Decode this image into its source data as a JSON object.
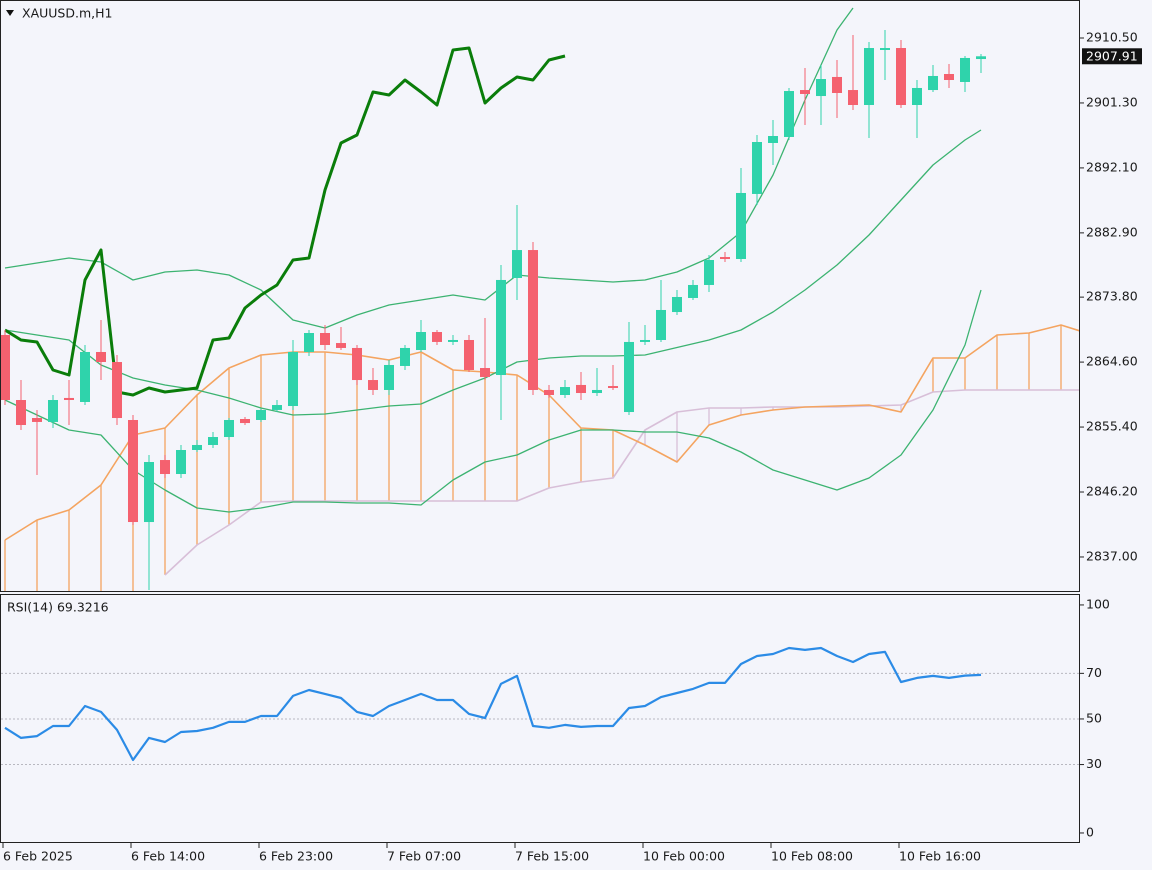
{
  "chart_data": [
    {
      "type": "candlestick",
      "title": "XAUUSD.m,H1",
      "categories": [
        "6 Feb 2025",
        null,
        null,
        null,
        null,
        null,
        null,
        null,
        "6 Feb 14:00",
        null,
        null,
        null,
        null,
        null,
        null,
        null,
        "6 Feb 23:00",
        null,
        null,
        null,
        null,
        null,
        null,
        null,
        "7 Feb 07:00",
        null,
        null,
        null,
        null,
        null,
        null,
        null,
        "7 Feb 15:00",
        null,
        null,
        null,
        null,
        null,
        null,
        null,
        "10 Feb 00:00",
        null,
        null,
        null,
        null,
        null,
        null,
        null,
        "10 Feb 08:00",
        null,
        null,
        null,
        null,
        null,
        null,
        null,
        "10 Feb 16:00",
        null,
        null,
        null,
        null,
        null,
        null,
        null,
        null,
        null,
        null,
        null,
        null
      ],
      "open": [
        2868.44,
        2859.23,
        2856.68,
        2856.12,
        2859.52,
        2858.95,
        2866.03,
        2864.61,
        2856.4,
        2841.95,
        2850.73,
        2848.75,
        2852.15,
        2852.86,
        2853.99,
        2856.54,
        2856.4,
        2857.82,
        2858.38,
        2866.03,
        2868.72,
        2867.3,
        2866.6,
        2862.06,
        2860.65,
        2864.05,
        2866.31,
        2868.86,
        2867.45,
        2867.73,
        2863.76,
        2862.77,
        2876.51,
        2880.47,
        2860.65,
        2859.94,
        2861.36,
        2860.22,
        2861.21,
        2857.53,
        2867.45,
        2867.73,
        2871.69,
        2873.68,
        2875.52,
        2879.48,
        2879.2,
        2888.41,
        2895.63,
        2896.48,
        2903.13,
        2902.28,
        2904.98,
        2903.13,
        2901.01,
        2908.8,
        2909.08,
        2901.01,
        2903.13,
        2905.4,
        2904.27,
        2907.52,
        null,
        null,
        null,
        null,
        null,
        null,
        null
      ],
      "high": [
        2869.15,
        2862.06,
        2857.82,
        2859.94,
        2862.06,
        2867.02,
        2870.56,
        2865.6,
        2857.11,
        2851.44,
        2851.44,
        2852.86,
        2853.57,
        2854.7,
        2856.68,
        2856.82,
        2858.1,
        2859.23,
        2867.73,
        2869.15,
        2869.85,
        2869.57,
        2867.02,
        2863.76,
        2864.9,
        2867.02,
        2870.56,
        2869.15,
        2868.44,
        2868.44,
        2870.84,
        2878.35,
        2886.85,
        2881.61,
        2861.36,
        2862.06,
        2863.2,
        2863.76,
        2864.19,
        2870.28,
        2869.85,
        2876.23,
        2874.81,
        2876.23,
        2879.77,
        2880.19,
        2892.09,
        2896.76,
        2898.89,
        2903.42,
        2906.25,
        2906.67,
        2907.38,
        2910.92,
        2909.93,
        2911.63,
        2910.22,
        2904.55,
        2906.67,
        2906.82,
        2907.95,
        2908.23,
        null,
        null,
        null,
        null,
        null,
        null,
        null
      ],
      "low": [
        2858.52,
        2854.98,
        2848.61,
        2855.27,
        2855.69,
        2858.52,
        2862.06,
        2855.69,
        2841.53,
        2832.32,
        2848.19,
        2848.19,
        2851.87,
        2852.43,
        2853.57,
        2855.69,
        2856.12,
        2857.53,
        2857.82,
        2865.46,
        2866.31,
        2866.31,
        2861.36,
        2859.94,
        2859.94,
        2863.48,
        2866.03,
        2867.02,
        2867.02,
        2863.2,
        2862.06,
        2856.4,
        2873.39,
        2859.94,
        2859.52,
        2859.52,
        2859.23,
        2859.8,
        2860.65,
        2857.11,
        2867.02,
        2867.45,
        2871.27,
        2873.39,
        2874.53,
        2878.78,
        2878.78,
        2886.85,
        2892.51,
        2896.05,
        2898.18,
        2898.18,
        2899.17,
        2900.3,
        2896.34,
        2904.55,
        2900.59,
        2896.34,
        2902.85,
        2903.42,
        2902.85,
        2905.54,
        null,
        null,
        null,
        null,
        null,
        null,
        null
      ],
      "close": [
        2859.23,
        2855.69,
        2856.12,
        2859.23,
        2859.23,
        2866.03,
        2864.61,
        2856.68,
        2841.95,
        2850.45,
        2848.75,
        2852.15,
        2852.86,
        2853.99,
        2856.4,
        2855.97,
        2857.82,
        2858.52,
        2866.03,
        2868.72,
        2867.02,
        2866.6,
        2862.06,
        2860.65,
        2864.19,
        2866.6,
        2868.86,
        2867.45,
        2867.73,
        2863.48,
        2862.49,
        2876.23,
        2880.47,
        2860.65,
        2859.94,
        2861.07,
        2860.22,
        2860.65,
        2860.93,
        2867.45,
        2867.73,
        2871.98,
        2873.82,
        2875.52,
        2879.06,
        2879.2,
        2888.55,
        2895.77,
        2896.62,
        2902.99,
        2902.57,
        2904.69,
        2902.71,
        2901.01,
        2909.08,
        2909.08,
        2901.01,
        2903.42,
        2905.12,
        2904.55,
        2907.67,
        2907.91,
        null,
        null,
        null,
        null,
        null,
        null,
        null
      ],
      "up_color": "#2fd3ab",
      "down_color": "#f4616f",
      "ylim": [
        2832.04,
        2915.88
      ],
      "yticks": [
        {
          "value": 2837.0,
          "label": "2837.00"
        },
        {
          "value": 2846.2,
          "label": "2846.20"
        },
        {
          "value": 2855.4,
          "label": "2855.40"
        },
        {
          "value": 2864.6,
          "label": "2864.60"
        },
        {
          "value": 2873.8,
          "label": "2873.80"
        },
        {
          "value": 2882.9,
          "label": "2882.90"
        },
        {
          "value": 2892.1,
          "label": "2892.10"
        },
        {
          "value": 2901.3,
          "label": "2901.30"
        },
        {
          "value": 2910.5,
          "label": "2910.50"
        }
      ],
      "last_price": 2907.91,
      "cloud": {
        "color_a": "#f4a460",
        "color_b": "#d8bfd8",
        "x": [
          0,
          2,
          4,
          6,
          8,
          10,
          12,
          14,
          16,
          18,
          20,
          22,
          24,
          26,
          28,
          30,
          32,
          34,
          36,
          38,
          40,
          42,
          44,
          46,
          48,
          50,
          52,
          54,
          56,
          58,
          60,
          62,
          64,
          66,
          68
        ],
        "span_a": [
          2839.41,
          2842.24,
          2843.65,
          2847.19,
          2854.28,
          2855.27,
          2859.94,
          2863.76,
          2865.6,
          2866.03,
          2866.03,
          2865.6,
          2864.9,
          2866.03,
          2863.48,
          2863.2,
          2862.77,
          2859.94,
          2855.27,
          2854.98,
          2852.86,
          2850.45,
          2855.69,
          2857.11,
          2857.82,
          2858.24,
          2858.38,
          2858.52,
          2857.53,
          2865.18,
          2865.18,
          2868.44,
          2868.72,
          2869.85,
          2868.44
        ],
        "span_b": [
          null,
          null,
          null,
          null,
          null,
          2834.45,
          2838.7,
          2841.53,
          2844.79,
          2844.93,
          2844.93,
          2844.93,
          2844.93,
          2844.93,
          2844.93,
          2844.93,
          2844.93,
          2846.77,
          2847.62,
          2848.19,
          2854.98,
          2857.53,
          2858.1,
          2858.1,
          2858.24,
          2858.24,
          2858.24,
          2858.38,
          2858.52,
          2860.36,
          2860.65,
          2860.65,
          2860.65,
          2860.65,
          2860.65
        ]
      },
      "lines": [
        {
          "color": "#3cb371",
          "width": 1.3,
          "x": [
            0,
            4,
            6,
            8,
            10,
            12,
            14,
            16,
            18,
            20,
            22,
            24,
            26,
            28,
            30,
            32,
            34,
            36,
            38,
            40,
            42,
            44,
            46,
            48,
            50,
            52,
            53
          ],
          "values": [
            2877.93,
            2879.34,
            2878.78,
            2876.23,
            2877.36,
            2877.64,
            2876.93,
            2874.81,
            2870.56,
            2869.43,
            2871.27,
            2872.69,
            2873.39,
            2874.1,
            2873.39,
            2876.93,
            2876.51,
            2876.23,
            2875.94,
            2876.23,
            2877.36,
            2879.34,
            2883.02,
            2891.1,
            2901.72,
            2911.63,
            2914.75
          ]
        },
        {
          "color": "#3cb371",
          "width": 1.3,
          "x": [
            0,
            4,
            6,
            8,
            10,
            12,
            14,
            16,
            18,
            20,
            22,
            24,
            26,
            28,
            30,
            32,
            34,
            36,
            38,
            40,
            44,
            46,
            48,
            50,
            52,
            54,
            56,
            58,
            60,
            61
          ],
          "values": [
            2869.15,
            2867.73,
            2864.19,
            2862.35,
            2861.36,
            2860.65,
            2859.52,
            2858.1,
            2857.11,
            2857.25,
            2857.82,
            2858.38,
            2858.67,
            2860.65,
            2862.35,
            2864.61,
            2865.18,
            2865.46,
            2865.46,
            2865.6,
            2867.73,
            2869.15,
            2871.69,
            2874.81,
            2878.35,
            2882.6,
            2887.56,
            2892.51,
            2896.05,
            2897.47
          ]
        },
        {
          "color": "#3cb371",
          "width": 1.3,
          "x": [
            0,
            4,
            6,
            8,
            10,
            12,
            14,
            16,
            18,
            20,
            22,
            24,
            26,
            28,
            30,
            32,
            34,
            36,
            38,
            40,
            42,
            44,
            46,
            48,
            50,
            52,
            54,
            56,
            58,
            60,
            61
          ],
          "values": [
            2859.23,
            2854.98,
            2854.28,
            2849.32,
            2846.49,
            2843.94,
            2843.37,
            2843.94,
            2844.79,
            2844.79,
            2844.65,
            2844.65,
            2844.36,
            2847.9,
            2850.45,
            2851.44,
            2853.57,
            2854.98,
            2854.98,
            2854.7,
            2854.7,
            2853.85,
            2851.87,
            2849.32,
            2847.9,
            2846.49,
            2848.19,
            2851.44,
            2857.82,
            2867.02,
            2874.81
          ]
        },
        {
          "color": "#0a7d0a",
          "width": 3,
          "x": [
            0,
            1,
            2,
            3,
            4,
            5,
            6,
            7,
            8,
            9,
            10,
            11,
            12,
            13,
            14,
            15,
            16,
            17,
            18,
            19,
            20,
            21,
            22,
            23,
            24,
            25,
            26,
            27,
            28,
            29,
            30,
            31,
            32,
            33,
            34,
            35
          ],
          "values": [
            2869.15,
            2867.73,
            2867.45,
            2863.48,
            2862.77,
            2876.23,
            2880.47,
            2860.36,
            2859.94,
            2860.93,
            2860.36,
            2860.65,
            2860.93,
            2867.73,
            2868.01,
            2872.26,
            2874.1,
            2875.52,
            2879.06,
            2879.34,
            2888.97,
            2895.63,
            2896.76,
            2902.85,
            2902.43,
            2904.55,
            2902.85,
            2901.01,
            2908.8,
            2909.08,
            2901.29,
            2903.42,
            2904.98,
            2904.55,
            2907.38,
            2907.95
          ]
        }
      ]
    },
    {
      "type": "line",
      "title": "RSI(14) 69.3216",
      "color": "#2b8be6",
      "values": [
        46.1,
        41.7,
        42.5,
        46.9,
        46.9,
        55.7,
        53.1,
        45.2,
        32.0,
        41.7,
        39.9,
        44.3,
        44.7,
        46.1,
        48.7,
        48.7,
        51.3,
        51.3,
        60.1,
        62.7,
        61.0,
        59.2,
        53.1,
        51.3,
        55.7,
        58.3,
        61.0,
        58.3,
        58.3,
        52.2,
        50.4,
        65.4,
        68.9,
        46.9,
        46.1,
        47.4,
        46.5,
        46.9,
        46.9,
        54.8,
        55.7,
        59.6,
        61.4,
        63.2,
        65.8,
        65.8,
        74.1,
        77.6,
        78.5,
        81.1,
        80.3,
        81.1,
        77.6,
        75.0,
        78.5,
        79.4,
        66.2,
        68.0,
        68.9,
        68.0,
        69.0,
        69.3
      ],
      "ylim": [
        -4.4,
        104.8
      ],
      "yticks": [
        0,
        30,
        50,
        70,
        100
      ],
      "levels": [
        30,
        50,
        70
      ]
    }
  ]
}
